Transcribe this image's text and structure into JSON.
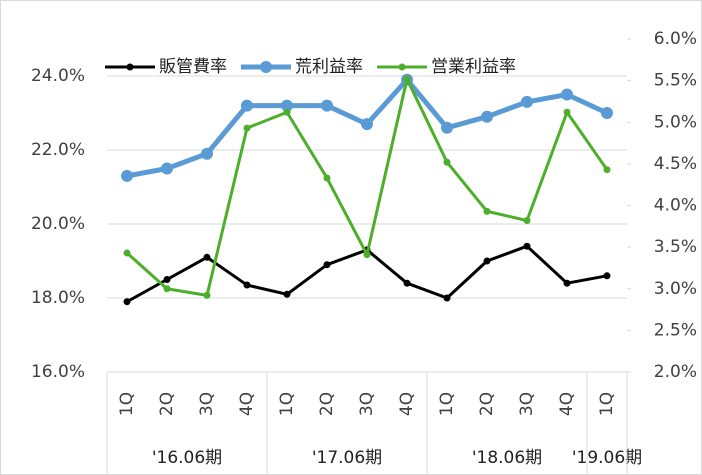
{
  "chart_data": {
    "type": "line",
    "categories": [
      "1Q",
      "2Q",
      "3Q",
      "4Q",
      "1Q",
      "2Q",
      "3Q",
      "4Q",
      "1Q",
      "2Q",
      "3Q",
      "4Q",
      "1Q"
    ],
    "groups": [
      {
        "label": "'16.06期",
        "count": 4
      },
      {
        "label": "'17.06期",
        "count": 4
      },
      {
        "label": "'18.06期",
        "count": 4
      },
      {
        "label": "'19.06期",
        "count": 1
      }
    ],
    "series": [
      {
        "name": "販管費率",
        "color": "#000000",
        "values": [
          17.9,
          18.5,
          19.1,
          18.35,
          18.1,
          18.9,
          19.3,
          18.4,
          18.0,
          19.0,
          19.4,
          18.4,
          18.6
        ]
      },
      {
        "name": "荒利益率",
        "color": "#5b9bd5",
        "values": [
          21.3,
          21.5,
          21.9,
          23.2,
          23.2,
          23.2,
          22.7,
          23.9,
          22.6,
          22.9,
          23.3,
          23.5,
          23.0
        ]
      },
      {
        "name": "営業利益率",
        "color": "#4caf2a",
        "axis": "y2",
        "values": [
          3.43,
          3.0,
          2.92,
          4.93,
          5.12,
          4.33,
          3.41,
          5.52,
          4.52,
          3.93,
          3.82,
          5.12,
          4.43
        ]
      }
    ],
    "ylim": [
      16,
      25
    ],
    "yticks": [
      {
        "value": 16,
        "label": "16.0%"
      },
      {
        "value": 18,
        "label": "18.0%"
      },
      {
        "value": 20,
        "label": "20.0%"
      },
      {
        "value": 22,
        "label": "22.0%"
      },
      {
        "value": 24,
        "label": "24.0%"
      }
    ],
    "y2lim": [
      2,
      6
    ],
    "y2ticks": [
      {
        "value": 2,
        "label": "2.0%"
      },
      {
        "value": 2.5,
        "label": "2.5%"
      },
      {
        "value": 3,
        "label": "3.0%"
      },
      {
        "value": 3.5,
        "label": "3.5%"
      },
      {
        "value": 4,
        "label": "4.0%"
      },
      {
        "value": 4.5,
        "label": "4.5%"
      },
      {
        "value": 5,
        "label": "5.0%"
      },
      {
        "value": 5.5,
        "label": "5.5%"
      },
      {
        "value": 6,
        "label": "6.0%"
      }
    ],
    "grid": true,
    "legend": "top"
  }
}
